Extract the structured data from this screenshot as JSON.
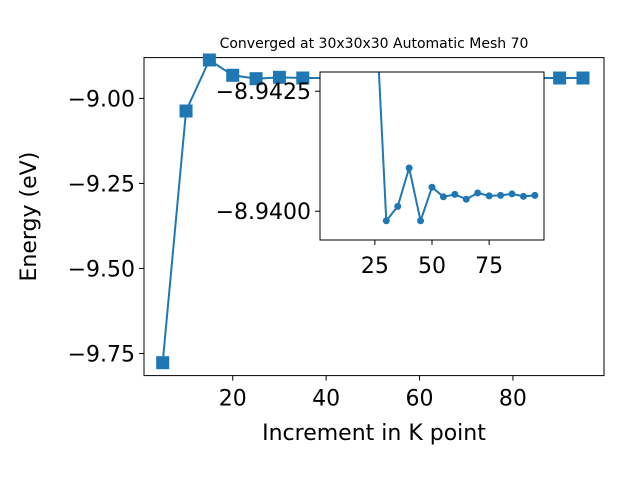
{
  "chart_data": [
    {
      "type": "line",
      "title": "Converged at 30x30x30 Automatic Mesh 70",
      "xlabel": "Increment in K point",
      "ylabel": "Energy (eV)",
      "xlim": [
        1,
        99.5
      ],
      "ylim": [
        -9.815,
        -8.88
      ],
      "xticks": [
        20,
        40,
        60,
        80
      ],
      "xtick_labels": [
        "20",
        "40",
        "60",
        "80"
      ],
      "yticks": [
        -9.75,
        -9.5,
        -9.25,
        -9.0
      ],
      "ytick_labels": [
        "−9.75",
        "−9.50",
        "−9.25",
        "−9.00"
      ],
      "grid": false,
      "marker": "square",
      "color": "#1f77b4",
      "series": [
        {
          "x": [
            5,
            10,
            15,
            20,
            25,
            30,
            35,
            40,
            45,
            50,
            55,
            60,
            65,
            70,
            75,
            80,
            85,
            90,
            95
          ],
          "y": [
            -9.777,
            -9.037,
            -8.887,
            -8.932,
            -8.942,
            -8.938,
            -8.94,
            -8.94,
            -8.94,
            -8.94,
            -8.94,
            -8.94,
            -8.94,
            -8.94,
            -8.94,
            -8.94,
            -8.94,
            -8.94,
            -8.94
          ]
        }
      ]
    },
    {
      "type": "line",
      "title": "",
      "xlabel": "",
      "ylabel": "",
      "xlim": [
        1,
        99
      ],
      "ylim": [
        -8.9394,
        -8.9429
      ],
      "xticks": [
        25,
        50,
        75
      ],
      "xtick_labels": [
        "25",
        "50",
        "75"
      ],
      "yticks": [
        -8.9425,
        -8.94
      ],
      "ytick_labels": [
        "−8.9425",
        "−8.9400"
      ],
      "grid": false,
      "marker": "circle",
      "color": "#1f77b4",
      "series": [
        {
          "x": [
            25,
            30,
            35,
            40,
            45,
            50,
            55,
            60,
            65,
            70,
            75,
            80,
            85,
            90,
            95
          ],
          "y": [
            -8.9446,
            -8.9398,
            -8.9401,
            -8.9409,
            -8.9398,
            -8.9405,
            -8.9403,
            -8.94035,
            -8.94025,
            -8.94038,
            -8.94032,
            -8.94033,
            -8.94036,
            -8.94031,
            -8.94033
          ]
        }
      ]
    }
  ]
}
